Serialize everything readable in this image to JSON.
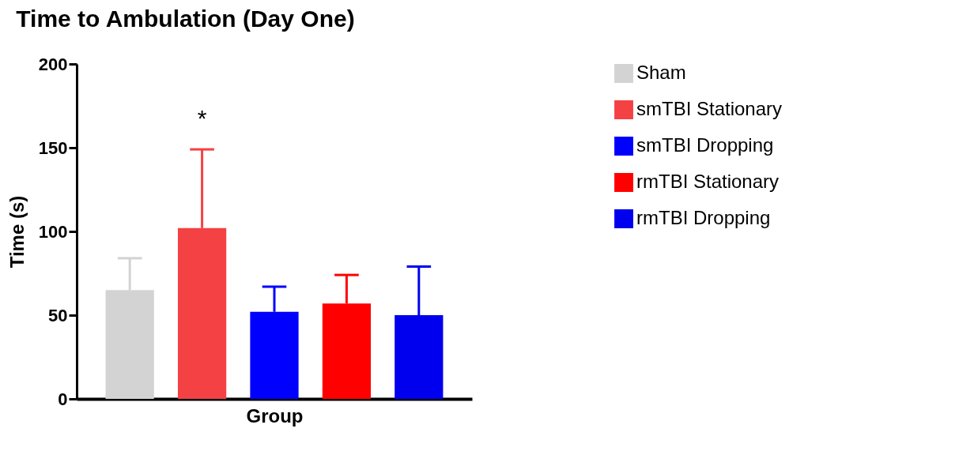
{
  "chart_data": {
    "type": "bar",
    "title": "Time to  Ambulation (Day One)",
    "xlabel": "Group",
    "ylabel": "Time  (s)",
    "categories": [
      null,
      null,
      null,
      null,
      null
    ],
    "series": [
      {
        "name": "Sham",
        "color": "#d3d3d3",
        "values": [
          65,
          null,
          null,
          null,
          null
        ],
        "errors": [
          [
            65,
            84
          ],
          null,
          null,
          null,
          null
        ]
      },
      {
        "name": "smTBI Stationary",
        "color": "#f44144",
        "values": [
          null,
          102,
          null,
          null,
          null
        ],
        "errors": [
          null,
          [
            102,
            149
          ],
          null,
          null,
          null
        ]
      },
      {
        "name": "smTBI Dropping",
        "color": "#0000ff",
        "values": [
          null,
          null,
          52,
          null,
          null
        ],
        "errors": [
          null,
          null,
          [
            52,
            67
          ],
          null,
          null
        ]
      },
      {
        "name": "rmTBI Stationary",
        "color": "#ff0000",
        "values": [
          null,
          null,
          null,
          57,
          null
        ],
        "errors": [
          null,
          null,
          null,
          [
            57,
            74
          ],
          null
        ]
      },
      {
        "name": "rmTBI Dropping",
        "color": "#0000ee",
        "values": [
          null,
          null,
          null,
          null,
          50
        ],
        "errors": [
          null,
          null,
          null,
          null,
          [
            50,
            79
          ]
        ]
      }
    ],
    "annotations": [
      "*"
    ],
    "ylim": [
      0,
      200
    ],
    "yticks": [
      0,
      50,
      100,
      150,
      200
    ],
    "grid": false,
    "legend": "top right"
  }
}
